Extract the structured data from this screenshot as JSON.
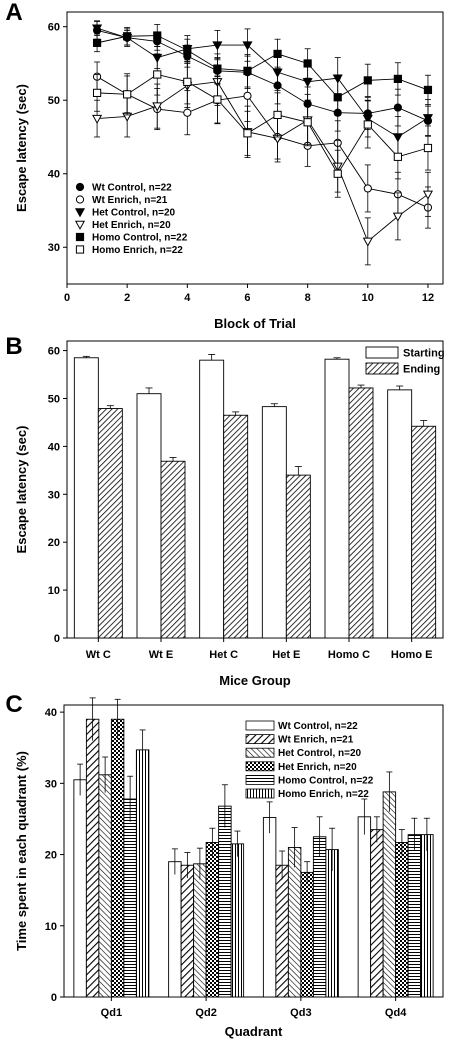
{
  "chart_data": [
    {
      "panel_label": "A",
      "type": "line",
      "xlabel": "Block of Trial",
      "ylabel": "Escape latency (sec)",
      "xlim": [
        0,
        12.5
      ],
      "ylim": [
        25,
        62
      ],
      "xticks": [
        0,
        2,
        4,
        6,
        8,
        10,
        12
      ],
      "yticks": [
        30,
        40,
        50,
        60
      ],
      "legend_position": "bottom-left",
      "x": [
        1,
        2,
        3,
        4,
        5,
        6,
        7,
        8,
        9,
        10,
        11,
        12
      ],
      "series": [
        {
          "name": "Wt Control, n=22",
          "marker": "circle",
          "fill": "#000000",
          "values": [
            59.5,
            58.5,
            58.0,
            56.0,
            54.0,
            53.8,
            52.0,
            49.5,
            48.3,
            48.2,
            49.0,
            47.2
          ],
          "errors": [
            1.2,
            1.0,
            1.2,
            1.5,
            1.8,
            2.2,
            2.5,
            2.3,
            2.5,
            2.2,
            2.5,
            2.0
          ]
        },
        {
          "name": "Wt Enrich, n=21",
          "marker": "circle",
          "fill": "#ffffff",
          "values": [
            53.2,
            50.8,
            48.8,
            48.3,
            50.0,
            50.6,
            45.0,
            43.8,
            44.2,
            38.0,
            37.2,
            35.4
          ],
          "errors": [
            2.0,
            2.5,
            2.8,
            3.0,
            3.2,
            3.5,
            3.0,
            2.8,
            3.0,
            3.2,
            3.0,
            2.8
          ]
        },
        {
          "name": "Het Control, n=20",
          "marker": "triangle-down",
          "fill": "#000000",
          "values": [
            59.8,
            58.5,
            55.8,
            57.0,
            57.5,
            57.5,
            53.8,
            52.5,
            53.0,
            47.5,
            45.0,
            47.6
          ],
          "errors": [
            1.0,
            1.2,
            1.5,
            1.8,
            2.0,
            2.2,
            2.5,
            2.5,
            2.8,
            2.5,
            2.8,
            2.5
          ]
        },
        {
          "name": "Het Enrich, n=20",
          "marker": "triangle-down",
          "fill": "#ffffff",
          "values": [
            47.5,
            47.8,
            49.2,
            52.0,
            52.5,
            45.7,
            44.8,
            47.3,
            41.0,
            30.8,
            34.2,
            37.2
          ],
          "errors": [
            2.5,
            2.8,
            3.0,
            3.0,
            3.2,
            3.5,
            3.2,
            3.5,
            3.5,
            3.2,
            3.2,
            3.0
          ]
        },
        {
          "name": "Homo Control, n=22",
          "marker": "square",
          "fill": "#000000",
          "values": [
            57.8,
            58.7,
            58.8,
            56.8,
            54.3,
            54.0,
            56.3,
            55.0,
            50.4,
            52.7,
            52.9,
            51.4
          ],
          "errors": [
            1.2,
            1.2,
            1.5,
            1.5,
            2.0,
            2.2,
            2.0,
            2.0,
            2.5,
            2.2,
            2.2,
            2.0
          ]
        },
        {
          "name": "Homo Enrich, n=22",
          "marker": "square",
          "fill": "#ffffff",
          "values": [
            51.0,
            50.8,
            53.5,
            52.5,
            50.1,
            45.5,
            48.0,
            47.0,
            40.0,
            46.7,
            42.3,
            43.5
          ],
          "errors": [
            2.5,
            2.8,
            2.8,
            3.0,
            3.2,
            3.0,
            3.0,
            3.0,
            3.2,
            3.2,
            3.0,
            3.0
          ]
        }
      ]
    },
    {
      "panel_label": "B",
      "type": "bar",
      "xlabel": "Mice Group",
      "ylabel": "Escape latency (sec)",
      "ylim": [
        0,
        62
      ],
      "yticks": [
        0,
        10,
        20,
        30,
        40,
        50,
        60
      ],
      "legend_position": "top-right",
      "categories": [
        "Wt C",
        "Wt E",
        "Het C",
        "Het E",
        "Homo C",
        "Homo E"
      ],
      "series": [
        {
          "name": "Starting",
          "pattern": "white",
          "values": [
            58.5,
            51.0,
            58.0,
            48.3,
            58.2,
            51.8
          ],
          "errors": [
            0.3,
            1.2,
            1.2,
            0.6,
            0.3,
            0.8
          ]
        },
        {
          "name": "Ending",
          "pattern": "diagonal",
          "values": [
            47.9,
            36.9,
            46.5,
            34.0,
            52.2,
            44.2
          ],
          "errors": [
            0.6,
            0.8,
            0.7,
            1.8,
            0.6,
            1.2
          ]
        }
      ]
    },
    {
      "panel_label": "C",
      "type": "bar",
      "xlabel": "Quadrant",
      "ylabel": "Time spent in each quadrant (%)",
      "ylim": [
        0,
        41
      ],
      "yticks": [
        0,
        10,
        20,
        30,
        40
      ],
      "legend_position": "top-right",
      "categories": [
        "Qd1",
        "Qd2",
        "Qd3",
        "Qd4"
      ],
      "series": [
        {
          "name": "Wt Control, n=22",
          "pattern": "white",
          "values": [
            30.5,
            19.0,
            25.2,
            25.3
          ],
          "errors": [
            2.2,
            1.8,
            2.2,
            2.5
          ]
        },
        {
          "name": "Wt Enrich, n=21",
          "pattern": "diag-right",
          "values": [
            39.0,
            18.5,
            18.5,
            23.5
          ],
          "errors": [
            3.0,
            1.8,
            2.0,
            1.8
          ]
        },
        {
          "name": "Het  Control, n=20",
          "pattern": "diag-left",
          "values": [
            31.2,
            18.7,
            21.0,
            28.8
          ],
          "errors": [
            2.5,
            2.2,
            2.8,
            2.8
          ]
        },
        {
          "name": "Het Enrich, n=20",
          "pattern": "crosshatch",
          "values": [
            39.0,
            21.7,
            17.5,
            21.7
          ],
          "errors": [
            2.8,
            2.0,
            1.5,
            1.8
          ]
        },
        {
          "name": "Homo Control, n=22",
          "pattern": "horizontal",
          "values": [
            27.8,
            26.8,
            22.5,
            22.8
          ],
          "errors": [
            3.2,
            3.0,
            2.8,
            2.3
          ]
        },
        {
          "name": "Homo Enrich, n=22",
          "pattern": "vertical",
          "values": [
            34.7,
            21.5,
            20.7,
            22.8
          ],
          "errors": [
            2.8,
            1.8,
            3.0,
            2.3
          ]
        }
      ]
    }
  ]
}
